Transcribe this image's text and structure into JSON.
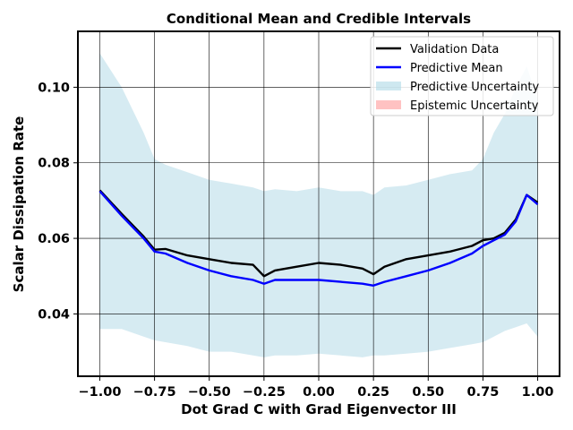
{
  "chart_data": {
    "type": "line",
    "title": "Conditional Mean and Credible Intervals",
    "xlabel": "Dot Grad C with Grad Eigenvector III",
    "ylabel": "Scalar Dissipation Rate",
    "xlim": [
      -1.1,
      1.1
    ],
    "ylim": [
      0.0235,
      0.1148
    ],
    "xticks": [
      -1.0,
      -0.75,
      -0.5,
      -0.25,
      0.0,
      0.25,
      0.5,
      0.75,
      1.0
    ],
    "xtick_labels": [
      "−1.00",
      "−0.75",
      "−0.50",
      "−0.25",
      "0.00",
      "0.25",
      "0.50",
      "0.75",
      "1.00"
    ],
    "yticks": [
      0.04,
      0.06,
      0.08,
      0.1
    ],
    "ytick_labels": [
      "0.04",
      "0.06",
      "0.08",
      "0.10"
    ],
    "grid": true,
    "legend_position": "top-right",
    "legend": [
      {
        "label": "Validation Data",
        "kind": "line",
        "color": "#000000"
      },
      {
        "label": "Predictive Mean",
        "kind": "line",
        "color": "#0000ff"
      },
      {
        "label": "Predictive Uncertainty",
        "kind": "band",
        "color": "#add8e6"
      },
      {
        "label": "Epistemic Uncertainty",
        "kind": "band",
        "color": "#ff9999"
      }
    ],
    "x": [
      -1.0,
      -0.9,
      -0.8,
      -0.75,
      -0.7,
      -0.6,
      -0.5,
      -0.4,
      -0.3,
      -0.25,
      -0.2,
      -0.1,
      0.0,
      0.1,
      0.2,
      0.25,
      0.3,
      0.4,
      0.5,
      0.6,
      0.7,
      0.75,
      0.8,
      0.85,
      0.9,
      0.95,
      1.0
    ],
    "series": [
      {
        "name": "Validation Data",
        "color": "#000000",
        "values": [
          0.0727,
          0.0665,
          0.0605,
          0.057,
          0.0572,
          0.0555,
          0.0545,
          0.0535,
          0.053,
          0.05,
          0.0515,
          0.0525,
          0.0535,
          0.053,
          0.052,
          0.0505,
          0.0525,
          0.0545,
          0.0555,
          0.0565,
          0.058,
          0.0595,
          0.06,
          0.0615,
          0.065,
          0.0715,
          0.0695
        ]
      },
      {
        "name": "Predictive Mean",
        "color": "#0000ff",
        "values": [
          0.0725,
          0.066,
          0.06,
          0.0565,
          0.056,
          0.0535,
          0.0515,
          0.05,
          0.049,
          0.048,
          0.049,
          0.049,
          0.049,
          0.0485,
          0.048,
          0.0475,
          0.0485,
          0.05,
          0.0515,
          0.0535,
          0.056,
          0.058,
          0.0595,
          0.061,
          0.0645,
          0.0715,
          0.069
        ]
      }
    ],
    "bands": [
      {
        "name": "Predictive Uncertainty",
        "color": "#add8e6",
        "upper": [
          0.109,
          0.1,
          0.088,
          0.081,
          0.0795,
          0.0775,
          0.0755,
          0.0745,
          0.0735,
          0.0725,
          0.073,
          0.0725,
          0.0735,
          0.0725,
          0.0725,
          0.0715,
          0.0735,
          0.074,
          0.0755,
          0.077,
          0.078,
          0.081,
          0.088,
          0.093,
          0.1,
          0.1055,
          0.097
        ],
        "lower": [
          0.036,
          0.036,
          0.034,
          0.033,
          0.0325,
          0.0315,
          0.03,
          0.03,
          0.029,
          0.0285,
          0.029,
          0.029,
          0.0295,
          0.029,
          0.0285,
          0.029,
          0.029,
          0.0295,
          0.03,
          0.031,
          0.032,
          0.0325,
          0.034,
          0.0355,
          0.0365,
          0.0375,
          0.034
        ]
      }
    ]
  }
}
